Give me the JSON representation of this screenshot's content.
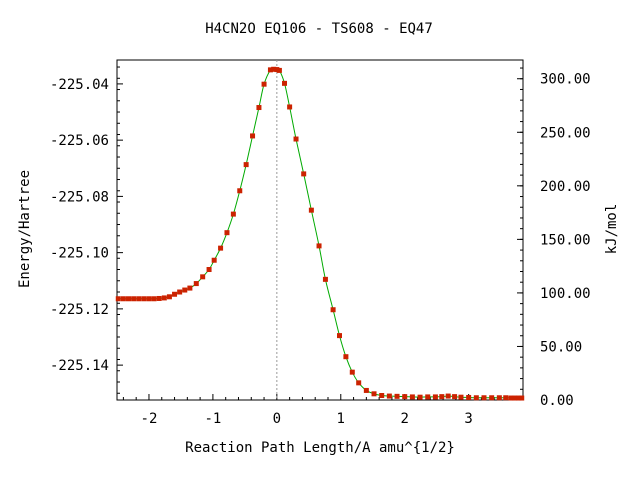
{
  "chart_data": {
    "type": "line",
    "title": "H4CN2O   EQ106 - TS608 - EQ47",
    "xlabel": "Reaction Path Length/A amu^{1/2}",
    "ylabel": "Energy/Hartree",
    "y2label": "kJ/mol",
    "xlim": [
      -2.5,
      3.85
    ],
    "ylim": [
      -225.1524,
      -225.0315
    ],
    "y2lim": [
      0.0,
      317.5
    ],
    "x_ticks": [
      {
        "value": -2,
        "label": "-2"
      },
      {
        "value": -1,
        "label": "-1"
      },
      {
        "value": 0,
        "label": "0"
      },
      {
        "value": 1,
        "label": "1"
      },
      {
        "value": 2,
        "label": "2"
      },
      {
        "value": 3,
        "label": "3"
      }
    ],
    "y_ticks": [
      {
        "value": -225.04,
        "label": "-225.04"
      },
      {
        "value": -225.06,
        "label": "-225.06"
      },
      {
        "value": -225.08,
        "label": "-225.08"
      },
      {
        "value": -225.1,
        "label": "-225.10"
      },
      {
        "value": -225.12,
        "label": "-225.12"
      },
      {
        "value": -225.14,
        "label": "-225.14"
      }
    ],
    "y2_ticks": [
      {
        "value": 300,
        "label": "300.00"
      },
      {
        "value": 250,
        "label": "250.00"
      },
      {
        "value": 200,
        "label": "200.00"
      },
      {
        "value": 150,
        "label": "150.00"
      },
      {
        "value": 100,
        "label": "100.00"
      },
      {
        "value": 50,
        "label": "50.00"
      },
      {
        "value": 0,
        "label": "0.00"
      }
    ],
    "ts_marker_x": 0,
    "colors": {
      "line": "#00aa00",
      "points": "#cc2200",
      "ts_line": "#999999"
    },
    "series": [
      {
        "points": [
          [
            -2.48,
            -225.1164
          ],
          [
            -2.4,
            -225.1164
          ],
          [
            -2.32,
            -225.1164
          ],
          [
            -2.24,
            -225.1164
          ],
          [
            -2.16,
            -225.1164
          ],
          [
            -2.08,
            -225.1164
          ],
          [
            -2.0,
            -225.1164
          ],
          [
            -1.92,
            -225.1164
          ],
          [
            -1.84,
            -225.1163
          ],
          [
            -1.76,
            -225.1161
          ],
          [
            -1.68,
            -225.1157
          ],
          [
            -1.6,
            -225.1148
          ],
          [
            -1.52,
            -225.114
          ],
          [
            -1.44,
            -225.1133
          ],
          [
            -1.36,
            -225.1126
          ],
          [
            -1.26,
            -225.111
          ],
          [
            -1.16,
            -225.1086
          ],
          [
            -1.06,
            -225.106
          ],
          [
            -0.98,
            -225.1027
          ],
          [
            -0.88,
            -225.0984
          ],
          [
            -0.78,
            -225.0929
          ],
          [
            -0.68,
            -225.0863
          ],
          [
            -0.58,
            -225.078
          ],
          [
            -0.48,
            -225.0687
          ],
          [
            -0.38,
            -225.0585
          ],
          [
            -0.28,
            -225.0484
          ],
          [
            -0.2,
            -225.0401
          ],
          [
            -0.1,
            -225.035
          ],
          [
            -0.05,
            -225.0348
          ],
          [
            0.0,
            -225.0349
          ],
          [
            0.04,
            -225.0352
          ],
          [
            0.12,
            -225.0398
          ],
          [
            0.2,
            -225.0482
          ],
          [
            0.3,
            -225.0596
          ],
          [
            0.42,
            -225.072
          ],
          [
            0.54,
            -225.0849
          ],
          [
            0.66,
            -225.0976
          ],
          [
            0.76,
            -225.1095
          ],
          [
            0.88,
            -225.1203
          ],
          [
            0.98,
            -225.1295
          ],
          [
            1.08,
            -225.137
          ],
          [
            1.18,
            -225.1425
          ],
          [
            1.28,
            -225.1463
          ],
          [
            1.4,
            -225.149
          ],
          [
            1.52,
            -225.1502
          ],
          [
            1.64,
            -225.1508
          ],
          [
            1.76,
            -225.151
          ],
          [
            1.88,
            -225.1511
          ],
          [
            2.0,
            -225.1512
          ],
          [
            2.12,
            -225.1513
          ],
          [
            2.24,
            -225.1514
          ],
          [
            2.36,
            -225.1513
          ],
          [
            2.48,
            -225.1513
          ],
          [
            2.58,
            -225.1512
          ],
          [
            2.68,
            -225.151
          ],
          [
            2.78,
            -225.1512
          ],
          [
            2.88,
            -225.1514
          ],
          [
            3.0,
            -225.1515
          ],
          [
            3.12,
            -225.1516
          ],
          [
            3.24,
            -225.1516
          ],
          [
            3.36,
            -225.1516
          ],
          [
            3.48,
            -225.1516
          ],
          [
            3.58,
            -225.1516
          ],
          [
            3.66,
            -225.1517
          ],
          [
            3.72,
            -225.1517
          ],
          [
            3.78,
            -225.1517
          ],
          [
            3.83,
            -225.1517
          ]
        ]
      }
    ]
  }
}
